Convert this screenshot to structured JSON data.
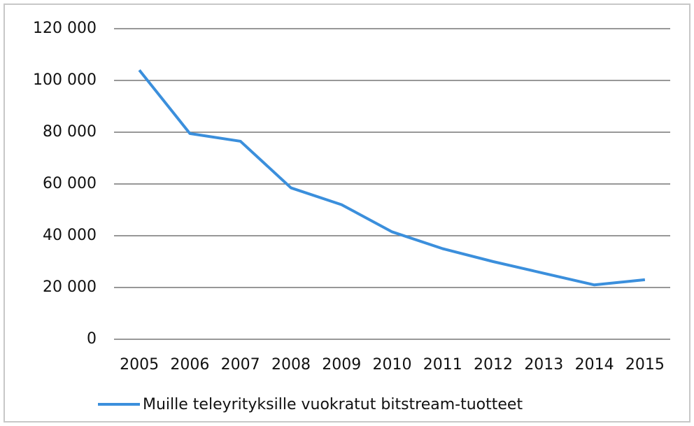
{
  "chart_data": {
    "type": "line",
    "categories": [
      "2005",
      "2006",
      "2007",
      "2008",
      "2009",
      "2010",
      "2011",
      "2012",
      "2013",
      "2014",
      "2015"
    ],
    "series": [
      {
        "name": "Muille teleyrityksille vuokratut bitstream-tuotteet",
        "color": "#3b8fdc",
        "values": [
          104000,
          79500,
          76500,
          58500,
          52000,
          41500,
          35000,
          30000,
          25500,
          21000,
          23000
        ]
      }
    ],
    "ylim": [
      0,
      120000
    ],
    "yticks": [
      0,
      {
        "value": 20000,
        "label": "20 000"
      },
      {
        "value": 40000,
        "label": "40 000"
      },
      {
        "value": 60000,
        "label": "60 000"
      },
      {
        "value": 80000,
        "label": "80 000"
      },
      {
        "value": 100000,
        "label": "100 000"
      },
      {
        "value": 120000,
        "label": "120 000"
      }
    ],
    "grid": true,
    "legend": "bottom"
  }
}
